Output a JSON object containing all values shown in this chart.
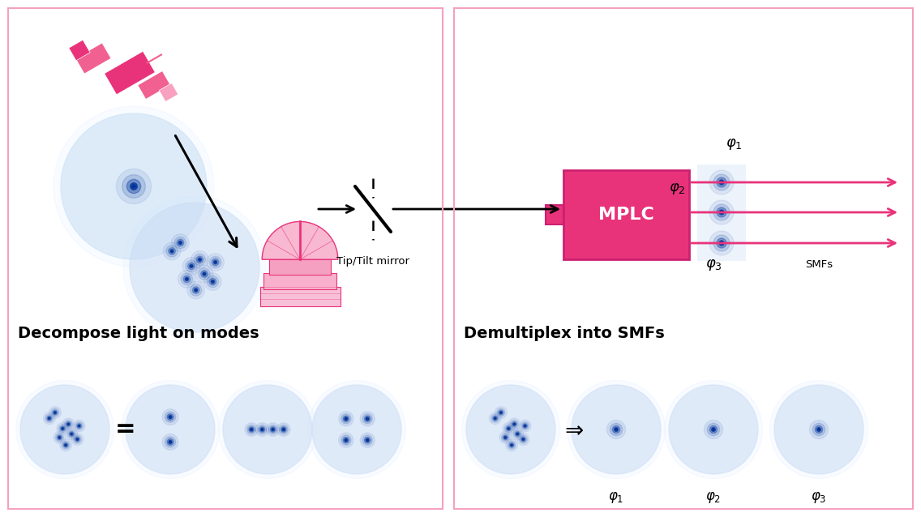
{
  "bg_color": "#ffffff",
  "panel_border_color": "#f5a0c0",
  "panel_border_lw": 1.5,
  "pink": "#e8337a",
  "pink_light": "#f070a0",
  "dark_blue": "#003399",
  "light_blue_bg": "#ddeeff",
  "light_blue_blob": "#ccddf5",
  "title_left": "Decompose light on modes",
  "title_right": "Demultiplex into SMFs",
  "mplc_label": "MPLC",
  "smfs_label": "SMFs",
  "tiptilt_label": "Tip/Tilt mirror"
}
